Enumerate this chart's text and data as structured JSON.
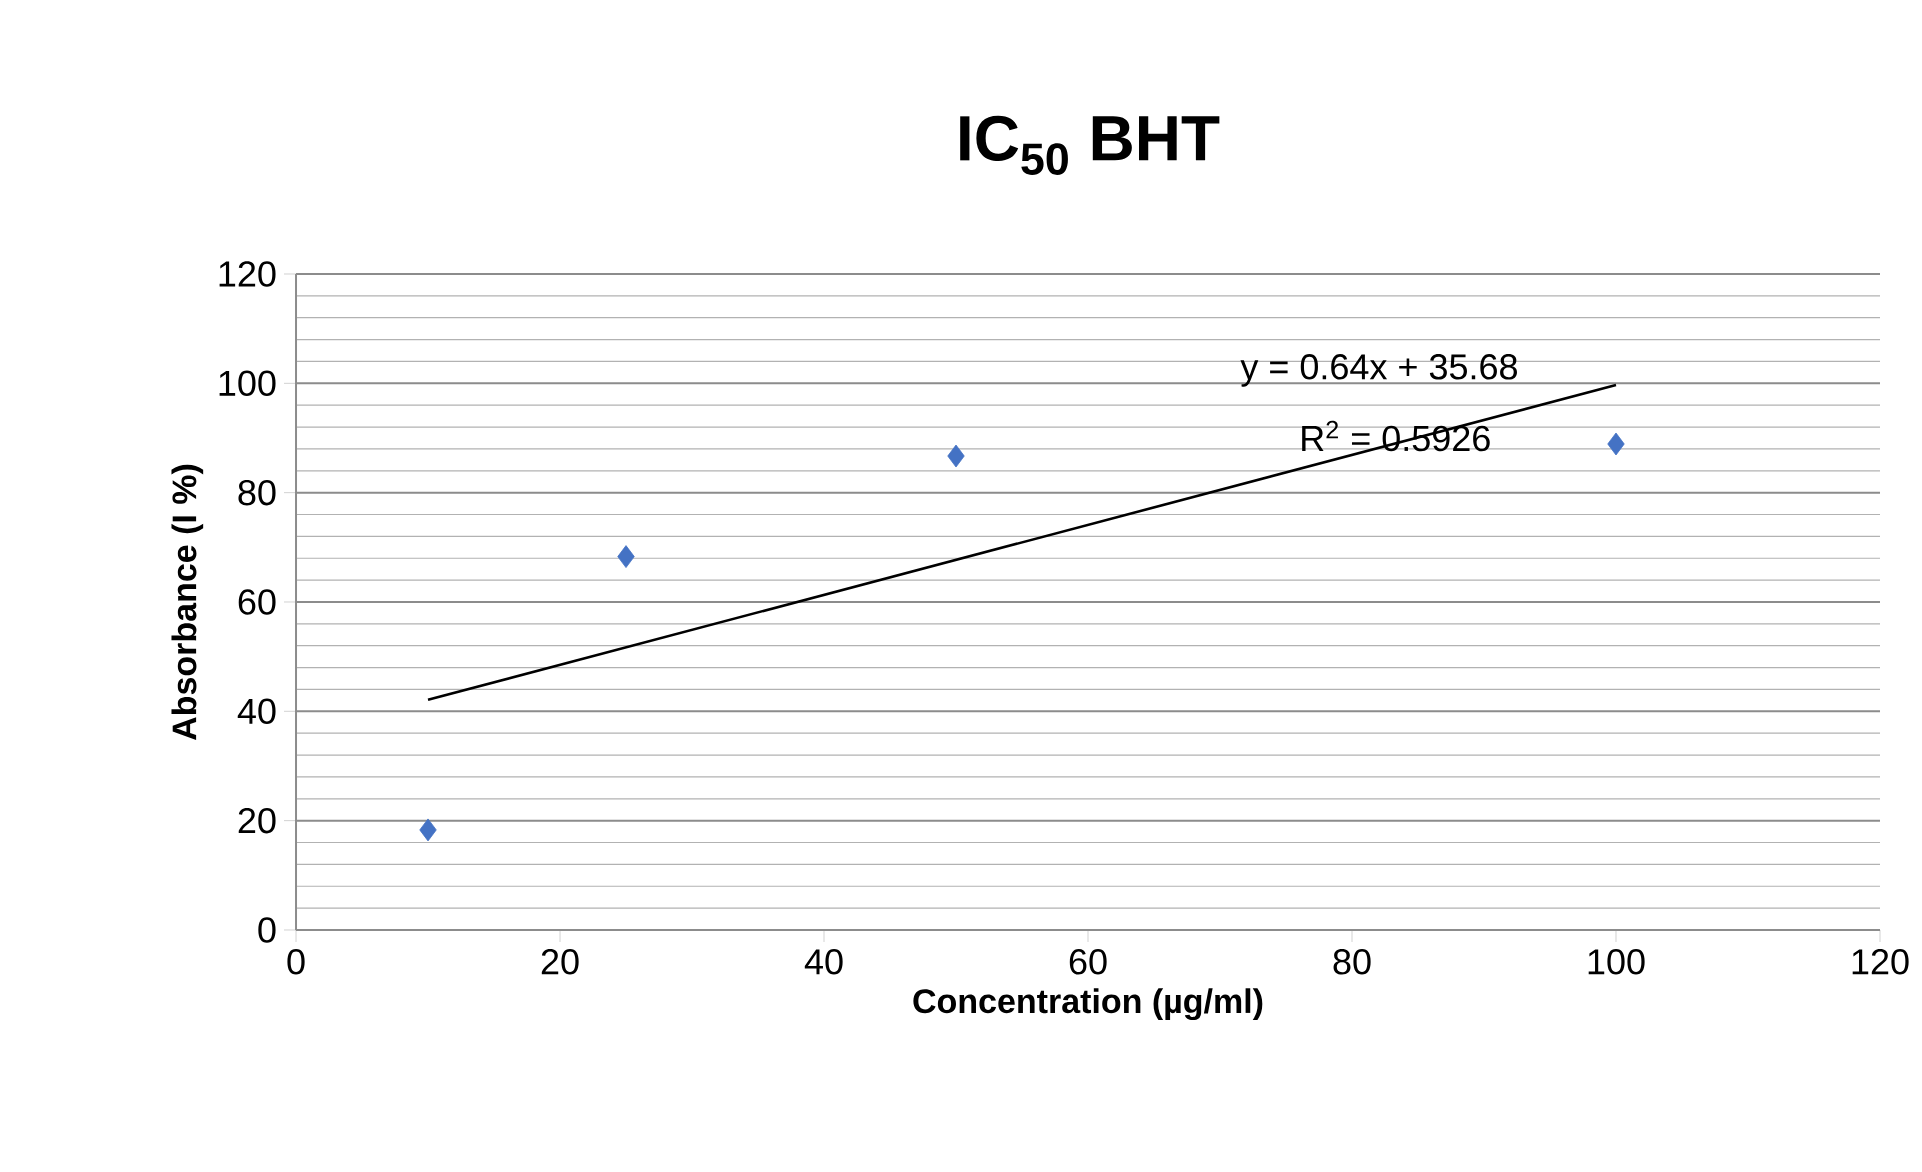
{
  "chart_data": {
    "type": "scatter",
    "title": "IC$_{50}$ BHT",
    "xlabel": "Concentration (µg/ml)",
    "ylabel": "Absorbance (I %)",
    "series": [
      {
        "color": "#4472c4",
        "marker": "diamond",
        "x": [
          10,
          25,
          50,
          100
        ],
        "values": [
          18.3,
          68.3,
          86.7,
          88.9
        ]
      },
      {
        "type": "line",
        "color": "#000000",
        "marker": "none",
        "x": [
          10,
          100
        ],
        "values": [
          42.1,
          99.7
        ]
      }
    ],
    "xlim": [
      0,
      120
    ],
    "xticks": [
      0,
      20,
      40,
      60,
      80,
      100,
      120
    ],
    "ylim": [
      0,
      120
    ],
    "yticks": [
      0,
      20,
      40,
      60,
      80,
      100,
      120
    ],
    "grid": "y",
    "annotations": [
      "y = 0.64x + 35.68",
      "R$^{2}$ = 0.5926"
    ]
  }
}
